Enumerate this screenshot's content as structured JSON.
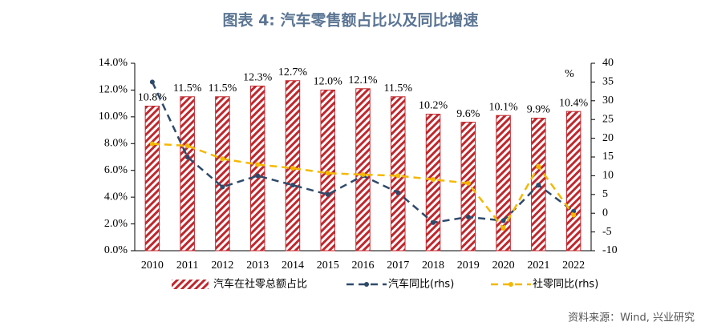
{
  "chart_data": {
    "type": "bar-line",
    "title": "图表 4:   汽车零售额占比以及同比增速",
    "source": "资料来源：Wind, 兴业研究",
    "y2_unit": "%",
    "categories": [
      "2010",
      "2011",
      "2012",
      "2013",
      "2014",
      "2015",
      "2016",
      "2017",
      "2018",
      "2019",
      "2020",
      "2021",
      "2022"
    ],
    "series": [
      {
        "name": "汽车在社零总额占比",
        "type": "bar",
        "color": "#c0272d",
        "axis": "y",
        "values": [
          10.8,
          11.5,
          11.5,
          12.3,
          12.7,
          12.0,
          12.1,
          11.5,
          10.2,
          9.6,
          10.1,
          9.9,
          10.4
        ],
        "value_labels": [
          "10.8%",
          "11.5%",
          "11.5%",
          "12.3%",
          "12.7%",
          "12.0%",
          "12.1%",
          "11.5%",
          "10.2%",
          "9.6%",
          "10.1%",
          "9.9%",
          "10.4%"
        ]
      },
      {
        "name": "汽车同比(rhs)",
        "type": "line",
        "color": "#2e4a6b",
        "axis": "y2",
        "style": "dashed",
        "values": [
          35,
          15,
          7,
          10,
          7.5,
          5,
          10,
          5.5,
          -2.5,
          -1,
          -2,
          7.5,
          0.5
        ]
      },
      {
        "name": "社零同比(rhs)",
        "type": "line",
        "color": "#f5b800",
        "axis": "y2",
        "style": "dashed",
        "values": [
          18.5,
          18,
          14.5,
          13,
          12,
          10.7,
          10.3,
          10,
          9,
          8,
          -4,
          12.5,
          -0.5
        ]
      }
    ],
    "ylim": [
      0,
      14
    ],
    "yticks": [
      {
        "value": 0,
        "label": "0.0%"
      },
      {
        "value": 2,
        "label": "2.0%"
      },
      {
        "value": 4,
        "label": "4.0%"
      },
      {
        "value": 6,
        "label": "6.0%"
      },
      {
        "value": 8,
        "label": "8.0%"
      },
      {
        "value": 10,
        "label": "10.0%"
      },
      {
        "value": 12,
        "label": "12.0%"
      },
      {
        "value": 14,
        "label": "14.0%"
      }
    ],
    "y2lim": [
      -10,
      40
    ],
    "y2ticks": [
      -10,
      -5,
      0,
      5,
      10,
      15,
      20,
      25,
      30,
      35,
      40
    ],
    "grid": false
  }
}
